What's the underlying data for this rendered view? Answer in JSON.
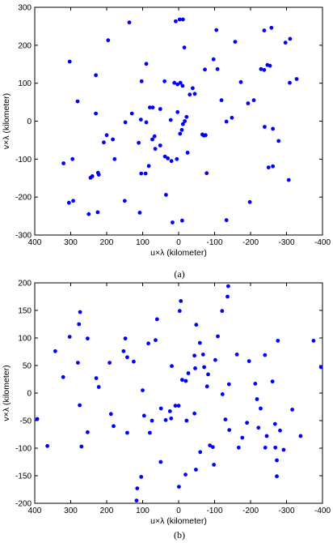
{
  "figure": {
    "panels": [
      "(a)",
      "(b)"
    ]
  },
  "chart_data": [
    {
      "type": "scatter",
      "panel_label": "(a)",
      "xlabel": "u×λ (kilometer)",
      "ylabel": "v×λ (kilometer)",
      "xlim": [
        400,
        -400
      ],
      "ylim": [
        -300,
        300
      ],
      "x_reversed": true,
      "xticks": [
        400,
        300,
        200,
        100,
        0,
        -100,
        -200,
        -300,
        -400
      ],
      "yticks": [
        300,
        200,
        100,
        0,
        -100,
        -200,
        -300
      ],
      "grid": false,
      "marker_color": "#0000ff",
      "points": [
        [
          -328,
          111
        ],
        [
          -310,
          217
        ],
        [
          -309,
          101
        ],
        [
          -297,
          207
        ],
        [
          -258,
          246
        ],
        [
          -254,
          146
        ],
        [
          -247,
          148
        ],
        [
          -238,
          239
        ],
        [
          -238,
          135
        ],
        [
          -229,
          137
        ],
        [
          -209,
          55
        ],
        [
          -193,
          47
        ],
        [
          -173,
          103
        ],
        [
          -157,
          209
        ],
        [
          -148,
          9
        ],
        [
          -133,
          -1
        ],
        [
          -119,
          55
        ],
        [
          -108,
          137
        ],
        [
          -105,
          240
        ],
        [
          -97,
          163
        ],
        [
          -73,
          136
        ],
        [
          -45,
          72
        ],
        [
          -39,
          87
        ],
        [
          -31,
          70
        ],
        [
          -16,
          194
        ],
        [
          -11,
          93
        ],
        [
          -5,
          101
        ],
        [
          -4,
          -33
        ],
        [
          -17,
          0
        ],
        [
          -22,
          11
        ],
        [
          -12,
          268
        ],
        [
          3,
          97
        ],
        [
          -3,
          268
        ],
        [
          12,
          101
        ],
        [
          3,
          24
        ],
        [
          8,
          263
        ],
        [
          22,
          3
        ],
        [
          39,
          105
        ],
        [
          51,
          32
        ],
        [
          72,
          36
        ],
        [
          80,
          36
        ],
        [
          90,
          151
        ],
        [
          103,
          105
        ],
        [
          105,
          4
        ],
        [
          90,
          -3
        ],
        [
          67,
          -40
        ],
        [
          51,
          -64
        ],
        [
          38,
          -93
        ],
        [
          30,
          -98
        ],
        [
          20,
          -105
        ],
        [
          5,
          -100
        ],
        [
          35,
          -194
        ],
        [
          65,
          -73
        ],
        [
          73,
          -48
        ],
        [
          83,
          -118
        ],
        [
          92,
          -138
        ],
        [
          104,
          -138
        ],
        [
          111,
          -57
        ],
        [
          137,
          260
        ],
        [
          130,
          20
        ],
        [
          108,
          -241
        ],
        [
          148,
          -3
        ],
        [
          150,
          -210
        ],
        [
          178,
          -100
        ],
        [
          183,
          -48
        ],
        [
          196,
          213
        ],
        [
          200,
          -37
        ],
        [
          208,
          -56
        ],
        [
          224,
          -136
        ],
        [
          222,
          -141
        ],
        [
          230,
          121
        ],
        [
          230,
          20
        ],
        [
          240,
          -145
        ],
        [
          245,
          -149
        ],
        [
          250,
          -245
        ],
        [
          281,
          52
        ],
        [
          293,
          -210
        ],
        [
          295,
          -100
        ],
        [
          303,
          157
        ],
        [
          305,
          -215
        ],
        [
          320,
          -111
        ],
        [
          -262,
          -119
        ],
        [
          -262,
          -20
        ],
        [
          -278,
          -52
        ],
        [
          -306,
          -155
        ],
        [
          -250,
          -122
        ],
        [
          -239,
          -15
        ],
        [
          -198,
          -213
        ],
        [
          -133,
          -261
        ],
        [
          -78,
          -137
        ],
        [
          -66,
          -35
        ],
        [
          -75,
          -37
        ],
        [
          -10,
          -262
        ],
        [
          -9,
          -23
        ],
        [
          17,
          -267
        ],
        [
          -25,
          -83
        ],
        [
          -12,
          -8
        ],
        [
          -70,
          -38
        ],
        [
          225,
          -240
        ]
      ]
    },
    {
      "type": "scatter",
      "panel_label": "(b)",
      "xlabel": "u×λ (kilometer)",
      "ylabel": "v×λ (kilometer)",
      "xlim": [
        400,
        -400
      ],
      "ylim": [
        -200,
        200
      ],
      "x_reversed": true,
      "xticks": [
        400,
        300,
        200,
        100,
        0,
        -100,
        -200,
        -300,
        -400
      ],
      "yticks": [
        200,
        150,
        100,
        50,
        0,
        -50,
        -100,
        -150,
        -200
      ],
      "grid": false,
      "marker_color": "#0000ff",
      "points": [
        [
          393,
          -47
        ],
        [
          365,
          -96
        ],
        [
          343,
          76
        ],
        [
          321,
          29
        ],
        [
          303,
          102
        ],
        [
          280,
          55
        ],
        [
          277,
          125
        ],
        [
          274,
          147
        ],
        [
          275,
          -22
        ],
        [
          270,
          -97
        ],
        [
          253,
          -71
        ],
        [
          253,
          99
        ],
        [
          229,
          27
        ],
        [
          222,
          11
        ],
        [
          192,
          55
        ],
        [
          188,
          -38
        ],
        [
          181,
          -60
        ],
        [
          153,
          76
        ],
        [
          148,
          99
        ],
        [
          143,
          65
        ],
        [
          143,
          -72
        ],
        [
          125,
          57
        ],
        [
          117,
          -195
        ],
        [
          115,
          -173
        ],
        [
          104,
          -152
        ],
        [
          100,
          5
        ],
        [
          96,
          -41
        ],
        [
          84,
          90
        ],
        [
          80,
          -72
        ],
        [
          74,
          -50
        ],
        [
          64,
          96
        ],
        [
          60,
          134
        ],
        [
          49,
          -28
        ],
        [
          50,
          -125
        ],
        [
          36,
          -49
        ],
        [
          24,
          -33
        ],
        [
          21,
          -46
        ],
        [
          19,
          49
        ],
        [
          9,
          -23
        ],
        [
          0,
          -23
        ],
        [
          -1,
          -170
        ],
        [
          -3,
          149
        ],
        [
          -6,
          167
        ],
        [
          -10,
          24
        ],
        [
          -19,
          -148
        ],
        [
          -20,
          22
        ],
        [
          -22,
          -50
        ],
        [
          -27,
          36
        ],
        [
          -46,
          45
        ],
        [
          -48,
          -139
        ],
        [
          -49,
          124
        ],
        [
          -59,
          91
        ],
        [
          -60,
          -107
        ],
        [
          -68,
          70
        ],
        [
          -71,
          47
        ],
        [
          -79,
          12
        ],
        [
          -82,
          34
        ],
        [
          -87,
          -95
        ],
        [
          -95,
          -98
        ],
        [
          -98,
          -130
        ],
        [
          -102,
          60
        ],
        [
          -109,
          103
        ],
        [
          -121,
          149
        ],
        [
          -122,
          -2
        ],
        [
          -130,
          -48
        ],
        [
          -136,
          175
        ],
        [
          -138,
          194
        ],
        [
          -140,
          16
        ],
        [
          -141,
          -67
        ],
        [
          -162,
          70
        ],
        [
          -167,
          -99
        ],
        [
          -177,
          -81
        ],
        [
          -190,
          -54
        ],
        [
          -196,
          58
        ],
        [
          -213,
          17
        ],
        [
          -218,
          -11
        ],
        [
          -228,
          -28
        ],
        [
          -240,
          69
        ],
        [
          -241,
          -99
        ],
        [
          -245,
          -78
        ],
        [
          -261,
          21
        ],
        [
          -268,
          -56
        ],
        [
          -269,
          -99
        ],
        [
          -273,
          -151
        ],
        [
          -273,
          -122
        ],
        [
          -276,
          95
        ],
        [
          -282,
          -68
        ],
        [
          -292,
          -103
        ],
        [
          -316,
          -30
        ],
        [
          -339,
          -78
        ],
        [
          -375,
          95
        ],
        [
          -396,
          47
        ],
        [
          -222,
          -63
        ],
        [
          -44,
          -37
        ],
        [
          -44,
          68
        ]
      ]
    }
  ]
}
